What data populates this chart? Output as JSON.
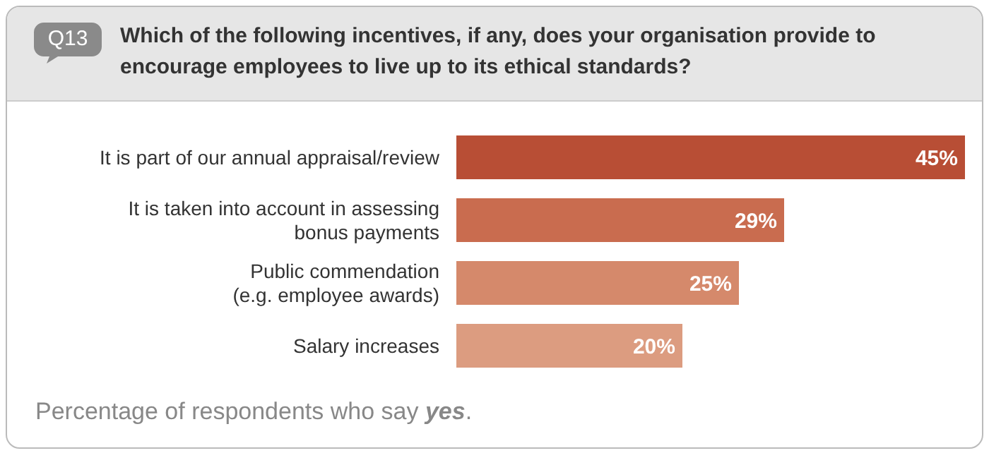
{
  "chart_data": {
    "type": "bar",
    "orientation": "horizontal",
    "title": "Which of the following incentives, if any, does your organisation provide to encourage employees to live up to its ethical standards?",
    "categories": [
      "It is part of our annual appraisal/review",
      "It is taken into account in assessing bonus payments",
      "Public commendation (e.g. employee awards)",
      "Salary increases"
    ],
    "values": [
      45,
      29,
      25,
      20
    ],
    "value_labels": [
      "45%",
      "29%",
      "25%",
      "20%"
    ],
    "colors": [
      "#b84e35",
      "#c96c4f",
      "#d5896b",
      "#dc9c80"
    ],
    "annotations": [
      "Q13",
      "Percentage of respondents who say yes."
    ]
  }
}
